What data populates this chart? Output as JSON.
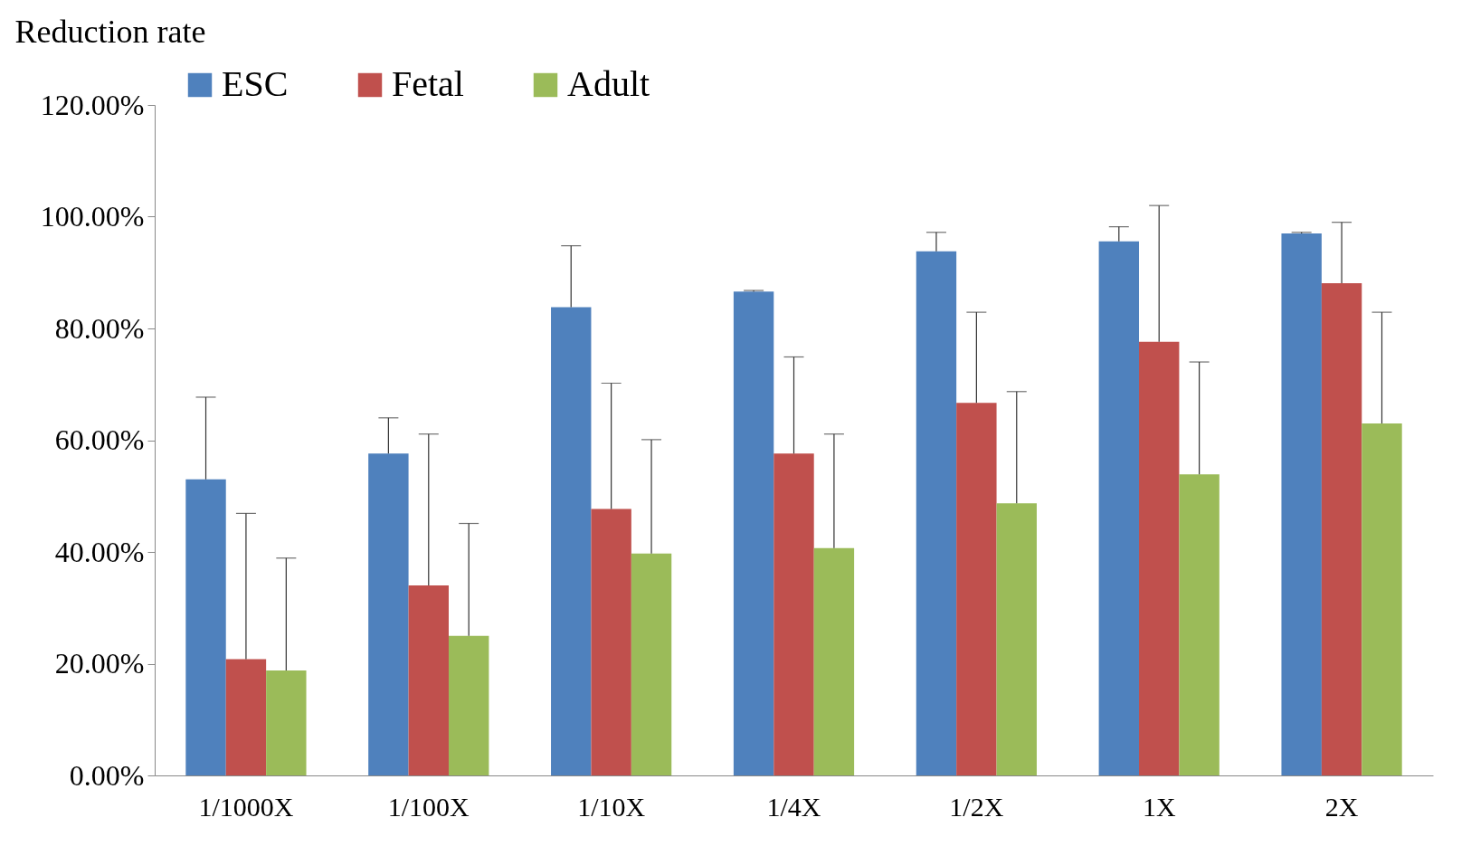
{
  "chart_data": {
    "type": "bar",
    "ylabel": "Reduction rate",
    "categories": [
      "1/1000X",
      "1/100X",
      "1/10X",
      "1/4X",
      "1/2X",
      "1X",
      "2X"
    ],
    "series": [
      {
        "name": "ESC",
        "color": "#4f81bd",
        "values": [
          53,
          57.6,
          83.8,
          86.6,
          93.8,
          95.6,
          97.0
        ],
        "errors": [
          [
            53,
            67.7
          ],
          [
            57.6,
            64.0
          ],
          [
            83.8,
            94.8
          ],
          [
            86.6,
            86.8
          ],
          [
            93.8,
            97.2
          ],
          [
            95.6,
            98.2
          ],
          [
            97.0,
            97.2
          ]
        ]
      },
      {
        "name": "Fetal",
        "color": "#c0504d",
        "values": [
          20.8,
          34.0,
          47.7,
          57.6,
          66.7,
          77.6,
          88.1
        ],
        "errors": [
          [
            20.8,
            46.9
          ],
          [
            34.0,
            61.1
          ],
          [
            47.7,
            70.2
          ],
          [
            57.6,
            74.9
          ],
          [
            66.7,
            82.9
          ],
          [
            77.6,
            102.0
          ],
          [
            88.1,
            99.0
          ]
        ]
      },
      {
        "name": "Adult",
        "color": "#9bbb59",
        "values": [
          18.8,
          25.0,
          39.7,
          40.7,
          48.7,
          53.9,
          63.0
        ],
        "errors": [
          [
            18.8,
            38.9
          ],
          [
            25.0,
            45.1
          ],
          [
            39.7,
            60.1
          ],
          [
            40.7,
            61.1
          ],
          [
            48.7,
            68.7
          ],
          [
            53.9,
            74.0
          ],
          [
            63.0,
            82.9
          ]
        ]
      }
    ],
    "ylim": [
      0,
      120
    ],
    "yticks": [
      {
        "value": 0,
        "label": "0.00%"
      },
      {
        "value": 20,
        "label": "20.00%"
      },
      {
        "value": 40,
        "label": "40.00%"
      },
      {
        "value": 60,
        "label": "60.00%"
      },
      {
        "value": 80,
        "label": "80.00%"
      },
      {
        "value": 100,
        "label": "100.00%"
      },
      {
        "value": 120,
        "label": "120.00%"
      }
    ],
    "legend": "top left",
    "grid": false
  }
}
